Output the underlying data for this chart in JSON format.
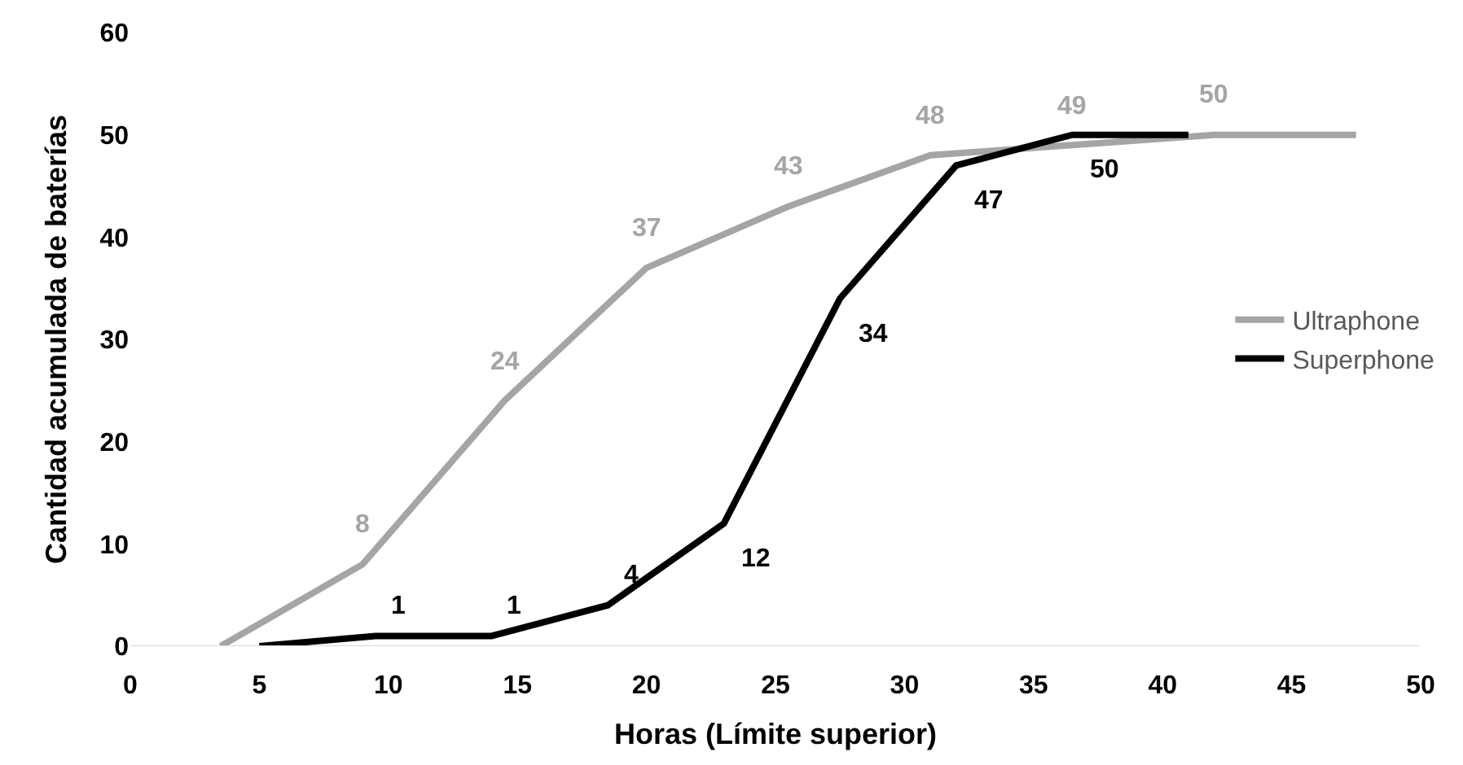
{
  "chart_data": {
    "type": "line",
    "xlabel": "Horas (Límite superior)",
    "ylabel": "Cantidad acumulada de baterías",
    "xlim": [
      0,
      50
    ],
    "xticks": [
      0,
      5,
      10,
      15,
      20,
      25,
      30,
      35,
      40,
      45,
      50
    ],
    "ylim": [
      0,
      60
    ],
    "yticks": [
      0,
      10,
      20,
      30,
      40,
      50,
      60
    ],
    "legend": "right",
    "marker": "none",
    "line_style": "solid",
    "series": [
      {
        "name": "Ultraphone",
        "color": "#a5a5a5",
        "x": [
          3.5,
          9,
          14.5,
          20,
          25.5,
          31,
          36.5,
          42,
          47.5
        ],
        "values": [
          0,
          8,
          24,
          37,
          43,
          48,
          49,
          50,
          50
        ],
        "value_labels": [
          null,
          "8",
          "24",
          "37",
          "43",
          "48",
          "49",
          "50",
          null
        ]
      },
      {
        "name": "Superphone",
        "color": "#000000",
        "x": [
          5,
          9.5,
          14,
          18.5,
          23,
          27.5,
          32,
          36.5,
          41
        ],
        "values": [
          0,
          1,
          1,
          4,
          12,
          34,
          47,
          50,
          50
        ],
        "value_labels": [
          null,
          "1",
          "1",
          "4",
          "12",
          "34",
          "47",
          "50",
          null
        ]
      }
    ]
  }
}
